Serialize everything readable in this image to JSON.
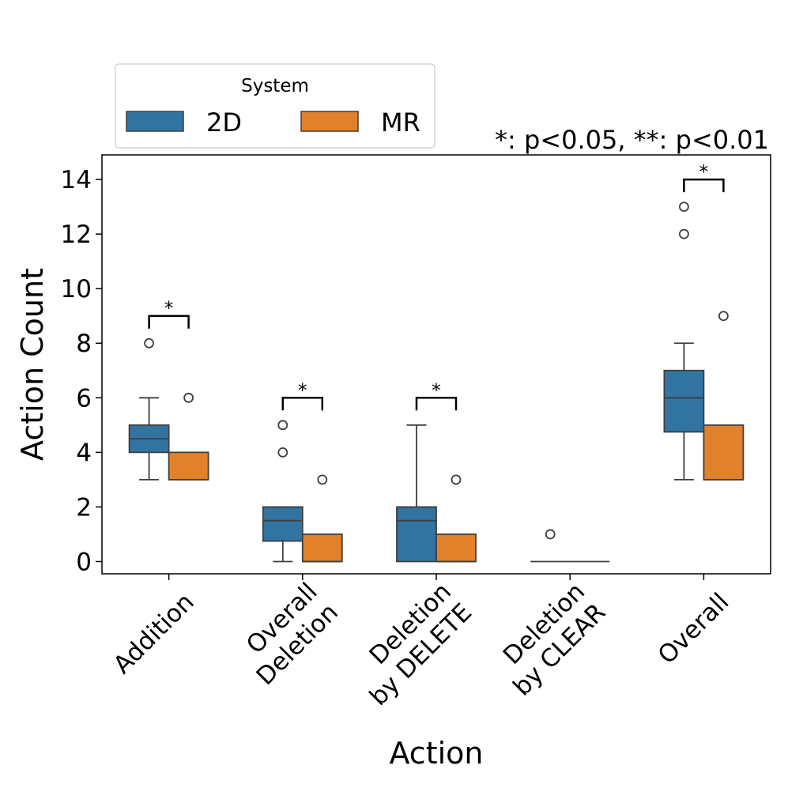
{
  "chart_data": {
    "type": "box",
    "title": "",
    "xlabel": "Action",
    "ylabel": "Action Count",
    "ylim": [
      -0.45,
      14.9
    ],
    "yticks": [
      0,
      2,
      4,
      6,
      8,
      10,
      12,
      14
    ],
    "categories": [
      "Addition",
      "Overall Deletion",
      "Deletion by DELETE",
      "Deletion by CLEAR",
      "Overall"
    ],
    "category_lines": [
      [
        "Addition"
      ],
      [
        "Overall",
        "Deletion"
      ],
      [
        "Deletion",
        "by DELETE"
      ],
      [
        "Deletion",
        "by CLEAR"
      ],
      [
        "Overall"
      ]
    ],
    "legend": {
      "title": "System",
      "position": "top-left, outside axes"
    },
    "significance_note": "*: p<0.05, **: p<0.01",
    "series": [
      {
        "name": "2D",
        "color": "#3274a1",
        "boxes": [
          {
            "min": 3,
            "q1": 4,
            "median": 4.5,
            "q3": 5,
            "max": 6,
            "outliers": [
              8
            ]
          },
          {
            "min": 0,
            "q1": 0.75,
            "median": 1.5,
            "q3": 2,
            "max": 2,
            "outliers": [
              4,
              5
            ]
          },
          {
            "min": 0,
            "q1": 0,
            "median": 1.5,
            "q3": 2,
            "max": 5,
            "outliers": []
          },
          {
            "min": 0,
            "q1": 0,
            "median": 0,
            "q3": 0,
            "max": 0,
            "outliers": [
              1
            ]
          },
          {
            "min": 3,
            "q1": 4.75,
            "median": 6,
            "q3": 7,
            "max": 8,
            "outliers": [
              12,
              13
            ]
          }
        ]
      },
      {
        "name": "MR",
        "color": "#e1812c",
        "boxes": [
          {
            "min": 3,
            "q1": 3,
            "median": 3,
            "q3": 4,
            "max": 4,
            "outliers": [
              6
            ]
          },
          {
            "min": 0,
            "q1": 0,
            "median": 0,
            "q3": 1,
            "max": 1,
            "outliers": [
              3
            ]
          },
          {
            "min": 0,
            "q1": 0,
            "median": 0,
            "q3": 1,
            "max": 1,
            "outliers": [
              3
            ]
          },
          {
            "min": 0,
            "q1": 0,
            "median": 0,
            "q3": 0,
            "max": 0,
            "outliers": []
          },
          {
            "min": 3,
            "q1": 3,
            "median": 3,
            "q3": 5,
            "max": 5,
            "outliers": [
              9
            ]
          }
        ]
      }
    ],
    "annotations": [
      {
        "category": "Addition",
        "label": "*",
        "bracket_y": 9
      },
      {
        "category": "Overall Deletion",
        "label": "*",
        "bracket_y": 6
      },
      {
        "category": "Deletion by DELETE",
        "label": "*",
        "bracket_y": 6
      },
      {
        "category": "Overall",
        "label": "*",
        "bracket_y": 14
      }
    ]
  }
}
